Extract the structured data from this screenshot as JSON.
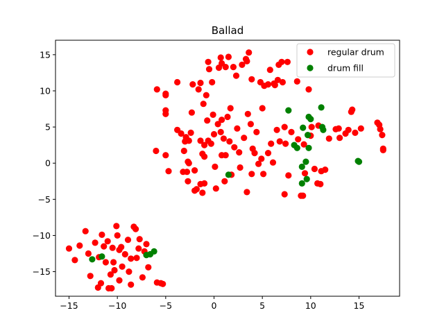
{
  "chart_data": {
    "type": "scatter",
    "title": "Ballad",
    "xlabel": "",
    "ylabel": "",
    "xlim": [
      -16.4,
      19.2
    ],
    "ylim": [
      -18.4,
      17.0
    ],
    "xticks": [
      -15,
      -10,
      -5,
      0,
      5,
      10,
      15
    ],
    "yticks": [
      -15,
      -10,
      -5,
      0,
      5,
      10,
      15
    ],
    "grid": false,
    "legend_position": "top-right",
    "series": [
      {
        "name": "regular drum",
        "color": "#ff0000",
        "points": [
          [
            -15.0,
            -11.8
          ],
          [
            -14.4,
            -13.4
          ],
          [
            -13.9,
            -11.4
          ],
          [
            -13.3,
            -9.4
          ],
          [
            -13.0,
            -12.5
          ],
          [
            -12.8,
            -15.6
          ],
          [
            -12.3,
            -11.0
          ],
          [
            -12.0,
            -17.2
          ],
          [
            -11.9,
            -13.0
          ],
          [
            -11.7,
            -16.6
          ],
          [
            -11.6,
            -9.9
          ],
          [
            -11.4,
            -11.5
          ],
          [
            -11.2,
            -13.7
          ],
          [
            -11.0,
            -10.8
          ],
          [
            -10.9,
            -17.3
          ],
          [
            -10.7,
            -15.4
          ],
          [
            -10.6,
            -17.3
          ],
          [
            -10.5,
            -11.7
          ],
          [
            -10.4,
            -13.7
          ],
          [
            -10.3,
            -14.8
          ],
          [
            -10.1,
            -8.7
          ],
          [
            -10.0,
            -10.0
          ],
          [
            -9.8,
            -12.0
          ],
          [
            -9.8,
            -16.2
          ],
          [
            -9.6,
            -11.6
          ],
          [
            -9.5,
            -14.3
          ],
          [
            -9.2,
            -12.6
          ],
          [
            -8.9,
            -10.6
          ],
          [
            -8.8,
            -15.0
          ],
          [
            -8.6,
            -13.2
          ],
          [
            -8.6,
            -16.8
          ],
          [
            -8.3,
            -8.8
          ],
          [
            -8.1,
            -9.1
          ],
          [
            -8.0,
            -13.1
          ],
          [
            -7.8,
            -11.8
          ],
          [
            -7.7,
            -10.5
          ],
          [
            -7.4,
            -15.8
          ],
          [
            -7.2,
            -12.2
          ],
          [
            -7.0,
            -11.2
          ],
          [
            -6.8,
            -14.4
          ],
          [
            -5.9,
            -16.5
          ],
          [
            -5.5,
            -16.6
          ],
          [
            -5.3,
            -16.7
          ],
          [
            -5.9,
            10.2
          ],
          [
            -5.0,
            9.6
          ],
          [
            -5.0,
            9.4
          ],
          [
            -5.0,
            7.3
          ],
          [
            -5.0,
            6.8
          ],
          [
            -6.0,
            1.7
          ],
          [
            -5.0,
            1.1
          ],
          [
            -4.7,
            -1.1
          ],
          [
            -3.8,
            11.2
          ],
          [
            -3.8,
            4.6
          ],
          [
            -3.4,
            4.1
          ],
          [
            -3.1,
            1.7
          ],
          [
            -3.0,
            3.0
          ],
          [
            -2.9,
            3.6
          ],
          [
            -3.2,
            -1.2
          ],
          [
            -2.8,
            -1.2
          ],
          [
            -2.7,
            0.2
          ],
          [
            -2.6,
            0.0
          ],
          [
            -2.7,
            -2.5
          ],
          [
            -2.4,
            4.2
          ],
          [
            -2.6,
            3.1
          ],
          [
            -2.3,
            7.0
          ],
          [
            -2.2,
            10.9
          ],
          [
            -2.0,
            -1.0
          ],
          [
            -2.0,
            -3.8
          ],
          [
            -1.8,
            -3.6
          ],
          [
            -1.6,
            10.2
          ],
          [
            -1.4,
            11.1
          ],
          [
            -1.4,
            3.1
          ],
          [
            -1.4,
            -2.9
          ],
          [
            -1.2,
            1.3
          ],
          [
            -1.1,
            8.2
          ],
          [
            -1.0,
            0.9
          ],
          [
            -1.0,
            2.5
          ],
          [
            -1.0,
            -2.8
          ],
          [
            -1.2,
            -4.1
          ],
          [
            -0.7,
            5.9
          ],
          [
            -0.6,
            3.1
          ],
          [
            -0.8,
            9.4
          ],
          [
            -0.6,
            14.0
          ],
          [
            -0.5,
            13.0
          ],
          [
            -0.2,
            11.2
          ],
          [
            -0.3,
            2.7
          ],
          [
            -0.1,
            6.7
          ],
          [
            0.0,
            4.0
          ],
          [
            0.1,
            -0.5
          ],
          [
            0.2,
            -3.5
          ],
          [
            0.4,
            5.4
          ],
          [
            0.5,
            13.2
          ],
          [
            0.7,
            14.6
          ],
          [
            0.7,
            4.3
          ],
          [
            0.8,
            6.0
          ],
          [
            0.8,
            1.1
          ],
          [
            0.8,
            13.8
          ],
          [
            1.0,
            3.4
          ],
          [
            1.1,
            -2.5
          ],
          [
            1.2,
            13.3
          ],
          [
            1.2,
            1.1
          ],
          [
            1.4,
            6.4
          ],
          [
            1.5,
            14.7
          ],
          [
            1.6,
            3.0
          ],
          [
            1.7,
            7.6
          ],
          [
            1.8,
            -1.6
          ],
          [
            2.0,
            13.3
          ],
          [
            2.1,
            2.2
          ],
          [
            2.3,
            12.1
          ],
          [
            2.4,
            4.8
          ],
          [
            2.6,
            1.5
          ],
          [
            2.7,
            -0.6
          ],
          [
            2.9,
            13.6
          ],
          [
            3.1,
            3.5
          ],
          [
            3.3,
            14.4
          ],
          [
            3.4,
            14.1
          ],
          [
            3.5,
            6.8
          ],
          [
            3.6,
            15.3
          ],
          [
            3.8,
            5.4
          ],
          [
            3.9,
            11.6
          ],
          [
            3.9,
            -1.5
          ],
          [
            3.4,
            -4.0
          ],
          [
            4.0,
            2.0
          ],
          [
            4.2,
            1.4
          ],
          [
            4.4,
            4.3
          ],
          [
            4.6,
            -0.1
          ],
          [
            4.8,
            11.2
          ],
          [
            4.9,
            0.6
          ],
          [
            5.0,
            7.6
          ],
          [
            5.2,
            10.7
          ],
          [
            5.1,
            -1.5
          ],
          [
            5.6,
            10.9
          ],
          [
            5.6,
            1.4
          ],
          [
            5.8,
            12.9
          ],
          [
            5.9,
            2.7
          ],
          [
            6.1,
            0.1
          ],
          [
            6.2,
            11.0
          ],
          [
            6.3,
            10.8
          ],
          [
            6.5,
            4.6
          ],
          [
            6.6,
            11.5
          ],
          [
            6.7,
            13.6
          ],
          [
            6.8,
            3.0
          ],
          [
            7.0,
            14.0
          ],
          [
            7.1,
            11.2
          ],
          [
            7.3,
            5.0
          ],
          [
            7.4,
            2.7
          ],
          [
            7.6,
            14.0
          ],
          [
            7.7,
            -1.7
          ],
          [
            8.0,
            4.3
          ],
          [
            7.3,
            -4.3
          ],
          [
            8.6,
            11.3
          ],
          [
            8.7,
            3.3
          ],
          [
            9.0,
            -4.5
          ],
          [
            9.2,
            -4.5
          ],
          [
            9.3,
            2.6
          ],
          [
            9.4,
            -1.4
          ],
          [
            9.8,
            10.2
          ],
          [
            10.0,
            3.8
          ],
          [
            10.1,
            5.0
          ],
          [
            10.4,
            -0.8
          ],
          [
            10.7,
            -2.8
          ],
          [
            10.8,
            5.2
          ],
          [
            11.0,
            -2.9
          ],
          [
            11.1,
            -1.1
          ],
          [
            11.5,
            -0.9
          ],
          [
            11.9,
            3.4
          ],
          [
            12.6,
            4.7
          ],
          [
            12.9,
            4.8
          ],
          [
            13.0,
            3.5
          ],
          [
            13.6,
            4.1
          ],
          [
            13.9,
            4.6
          ],
          [
            14.2,
            7.1
          ],
          [
            14.3,
            7.4
          ],
          [
            14.6,
            4.2
          ],
          [
            15.2,
            4.8
          ],
          [
            16.9,
            5.6
          ],
          [
            17.1,
            5.3
          ],
          [
            17.2,
            4.7
          ],
          [
            17.4,
            3.9
          ],
          [
            17.5,
            2.0
          ],
          [
            17.5,
            1.8
          ]
        ]
      },
      {
        "name": "drum fill",
        "color": "#008000",
        "points": [
          [
            -12.6,
            -13.3
          ],
          [
            -11.6,
            -12.9
          ],
          [
            -7.0,
            -12.7
          ],
          [
            -6.6,
            -12.6
          ],
          [
            -6.2,
            -12.2
          ],
          [
            1.5,
            -1.6
          ],
          [
            7.7,
            7.3
          ],
          [
            8.3,
            2.5
          ],
          [
            8.6,
            2.1
          ],
          [
            9.2,
            4.9
          ],
          [
            9.1,
            -2.8
          ],
          [
            9.1,
            -0.5
          ],
          [
            9.5,
            0.2
          ],
          [
            9.6,
            -2.2
          ],
          [
            9.7,
            3.9
          ],
          [
            9.8,
            2.1
          ],
          [
            9.8,
            6.4
          ],
          [
            10.0,
            6.1
          ],
          [
            11.1,
            7.7
          ],
          [
            11.2,
            5.0
          ],
          [
            11.3,
            4.6
          ],
          [
            14.9,
            0.3
          ],
          [
            15.0,
            0.2
          ]
        ]
      }
    ]
  }
}
